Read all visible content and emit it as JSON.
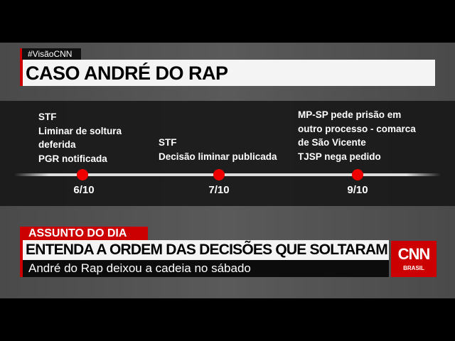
{
  "graphic": {
    "hashtag": "#VisãoCNN",
    "title": "CASO ANDRÉ DO RAP",
    "timeline": [
      {
        "date": "6/10",
        "lines": [
          "STF",
          "Liminar de soltura",
          "deferida",
          "PGR notificada"
        ]
      },
      {
        "date": "7/10",
        "lines": [
          "STF",
          "Decisão liminar publicada"
        ]
      },
      {
        "date": "9/10",
        "lines": [
          "MP-SP pede prisão em",
          "outro processo - comarca",
          "de São Vicente",
          "TJSP nega pedido"
        ]
      }
    ],
    "accent_color": "#cc0000"
  },
  "lower_third": {
    "kicker": "ASSUNTO DO DIA",
    "headline": "ENTENDA A ORDEM DAS DECISÕES QUE SOLTARAM CHEFE DO PCC",
    "subline": "André do Rap deixou a cadeia no sábado"
  },
  "logo": {
    "name": "CNN",
    "sub": "BRASIL"
  }
}
